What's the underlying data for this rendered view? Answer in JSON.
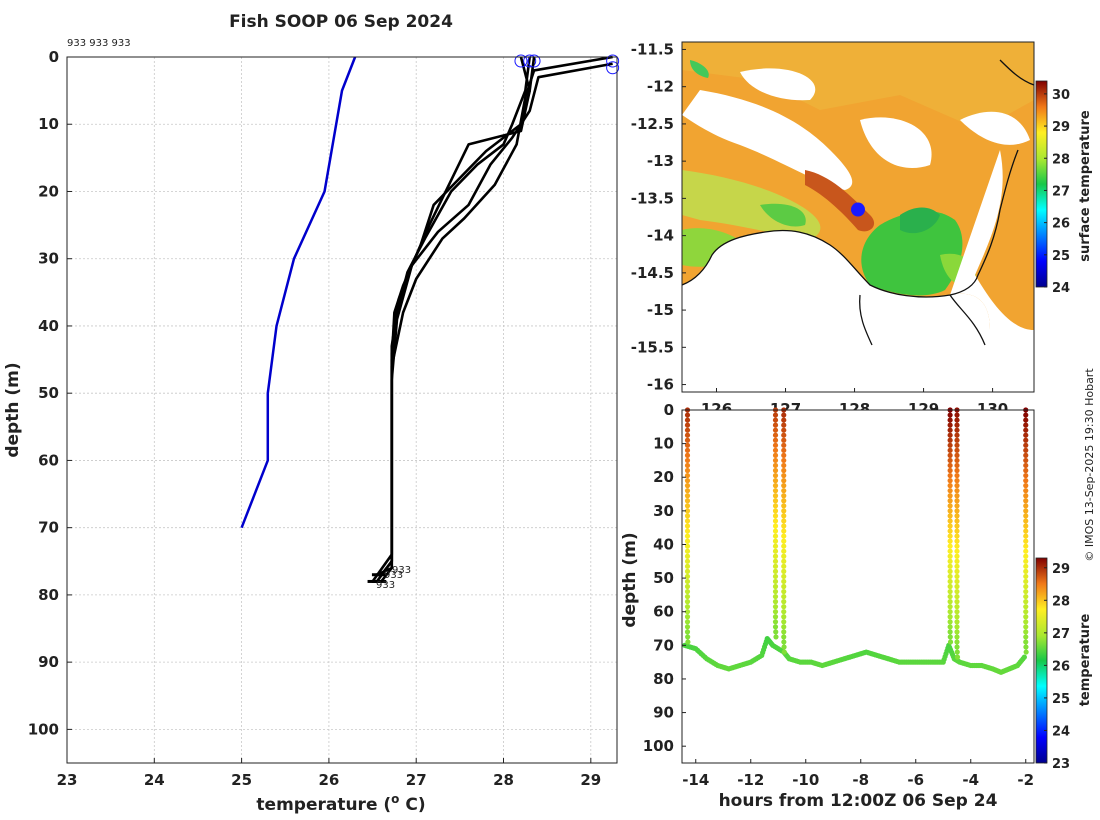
{
  "title": "Fish SOOP 06 Sep 2024",
  "credit": "© IMOS 13-Sep-2025 19:30 Hobart",
  "chart_data": [
    {
      "type": "line",
      "name": "profile",
      "xlabel": "temperature (",
      "xlabel_sup": "o",
      "xlabel_end": " C)",
      "ylabel": "depth (m)",
      "xlim": [
        23,
        29.3
      ],
      "ylim": [
        0,
        105
      ],
      "y_reversed": true,
      "grid": true,
      "xticks": [
        "23",
        "24",
        "25",
        "26",
        "27",
        "28",
        "29"
      ],
      "yticks": [
        "0",
        "10",
        "20",
        "30",
        "40",
        "50",
        "60",
        "70",
        "80",
        "90",
        "100"
      ],
      "top_labels": "933 933 933",
      "bottom_labels": [
        "933",
        "933",
        "933"
      ],
      "reference": {
        "name": "climatology",
        "color": "#0000cc",
        "points": [
          [
            26.3,
            0
          ],
          [
            26.15,
            5
          ],
          [
            25.95,
            20
          ],
          [
            25.6,
            30
          ],
          [
            25.4,
            40
          ],
          [
            25.3,
            50
          ],
          [
            25.3,
            60
          ],
          [
            25.0,
            70
          ]
        ]
      },
      "series": [
        {
          "name": "profile-1",
          "color": "#000000",
          "points": [
            [
              28.2,
              0
            ],
            [
              28.3,
              5
            ],
            [
              28.2,
              10
            ],
            [
              27.8,
              14
            ],
            [
              27.5,
              18
            ],
            [
              27.2,
              22
            ],
            [
              27.05,
              28
            ],
            [
              26.85,
              34
            ],
            [
              26.75,
              38
            ],
            [
              26.72,
              45
            ],
            [
              26.72,
              60
            ],
            [
              26.72,
              75
            ],
            [
              26.6,
              77
            ]
          ]
        },
        {
          "name": "profile-2",
          "color": "#000000",
          "points": [
            [
              28.3,
              0
            ],
            [
              28.25,
              5
            ],
            [
              28.1,
              10
            ],
            [
              28.0,
              13
            ],
            [
              27.7,
              16
            ],
            [
              27.4,
              20
            ],
            [
              27.1,
              27
            ],
            [
              26.9,
              32
            ],
            [
              26.8,
              37
            ],
            [
              26.72,
              44
            ],
            [
              26.72,
              60
            ],
            [
              26.72,
              75
            ],
            [
              26.55,
              78
            ]
          ]
        },
        {
          "name": "profile-3",
          "color": "#000000",
          "points": [
            [
              28.35,
              0
            ],
            [
              28.3,
              5
            ],
            [
              28.2,
              11
            ],
            [
              27.6,
              13
            ],
            [
              27.45,
              17
            ],
            [
              27.3,
              21
            ],
            [
              27.15,
              25
            ],
            [
              26.95,
              31
            ],
            [
              26.8,
              36
            ],
            [
              26.72,
              43
            ],
            [
              26.72,
              60
            ],
            [
              26.72,
              74
            ],
            [
              26.5,
              78
            ]
          ]
        },
        {
          "name": "profile-4",
          "color": "#000000",
          "points": [
            [
              29.25,
              0
            ],
            [
              28.35,
              2
            ],
            [
              28.25,
              6
            ],
            [
              28.15,
              13
            ],
            [
              27.9,
              19
            ],
            [
              27.55,
              24
            ],
            [
              27.3,
              27
            ],
            [
              27.0,
              33
            ],
            [
              26.85,
              38
            ],
            [
              26.72,
              46
            ],
            [
              26.72,
              60
            ],
            [
              26.72,
              76
            ],
            [
              26.6,
              78
            ]
          ]
        },
        {
          "name": "profile-5",
          "color": "#000000",
          "points": [
            [
              29.25,
              1
            ],
            [
              28.4,
              3
            ],
            [
              28.3,
              8
            ],
            [
              28.1,
              12
            ],
            [
              27.85,
              16
            ],
            [
              27.6,
              22
            ],
            [
              27.25,
              26
            ],
            [
              26.95,
              31
            ],
            [
              26.78,
              39
            ],
            [
              26.72,
              48
            ],
            [
              26.72,
              60
            ],
            [
              26.72,
              76
            ],
            [
              26.55,
              77
            ]
          ]
        }
      ]
    },
    {
      "type": "heatmap",
      "name": "sst-map",
      "xlim": [
        125.5,
        130.6
      ],
      "ylim": [
        -16.1,
        -11.4
      ],
      "xticks": [
        "126",
        "127",
        "128",
        "129",
        "130"
      ],
      "yticks": [
        "-11.5",
        "-12",
        "-12.5",
        "-13",
        "-13.5",
        "-14",
        "-14.5",
        "-15",
        "-15.5",
        "-16"
      ],
      "colorbar_label": "surface temperature",
      "colorbar_range": [
        24,
        30.4
      ],
      "colorbar_ticks": [
        "24",
        "25",
        "26",
        "27",
        "28",
        "29",
        "30"
      ],
      "vessel_position": {
        "lon": 128.05,
        "lat": -13.65
      }
    },
    {
      "type": "scatter",
      "name": "depth-time-section",
      "xlabel": "hours from 12:00Z 06 Sep 24",
      "ylabel": "depth (m)",
      "xlim": [
        -14.5,
        -1.7
      ],
      "ylim": [
        0,
        105
      ],
      "y_reversed": true,
      "xticks": [
        "-14",
        "-12",
        "-10",
        "-8",
        "-6",
        "-4",
        "-2"
      ],
      "yticks": [
        "0",
        "10",
        "20",
        "30",
        "40",
        "50",
        "60",
        "70",
        "80",
        "90",
        "100"
      ],
      "colorbar_label": "temperature",
      "colorbar_range": [
        23,
        29.3
      ],
      "colorbar_ticks": [
        "23",
        "24",
        "25",
        "26",
        "27",
        "28",
        "29"
      ],
      "seafloor": [
        [
          -14.4,
          70
        ],
        [
          -14.0,
          71
        ],
        [
          -13.6,
          74
        ],
        [
          -13.2,
          76
        ],
        [
          -12.8,
          77
        ],
        [
          -12.4,
          76
        ],
        [
          -12.0,
          75
        ],
        [
          -11.6,
          73
        ],
        [
          -11.4,
          68
        ],
        [
          -11.2,
          70
        ],
        [
          -10.8,
          72
        ],
        [
          -10.6,
          74
        ],
        [
          -10.2,
          75
        ],
        [
          -9.8,
          75
        ],
        [
          -9.4,
          76
        ],
        [
          -9.0,
          75
        ],
        [
          -8.6,
          74
        ],
        [
          -8.2,
          73
        ],
        [
          -7.8,
          72
        ],
        [
          -7.4,
          73
        ],
        [
          -7.0,
          74
        ],
        [
          -6.6,
          75
        ],
        [
          -6.2,
          75
        ],
        [
          -5.8,
          75
        ],
        [
          -5.4,
          75
        ],
        [
          -5.0,
          75
        ],
        [
          -4.8,
          70
        ],
        [
          -4.6,
          74
        ],
        [
          -4.4,
          75
        ],
        [
          -4.0,
          76
        ],
        [
          -3.6,
          76
        ],
        [
          -3.2,
          77
        ],
        [
          -2.9,
          78
        ],
        [
          -2.6,
          77
        ],
        [
          -2.3,
          76
        ],
        [
          -2.0,
          73
        ]
      ],
      "casts": [
        {
          "hour": -14.3,
          "surface_temp": 29.0,
          "bottom": 70
        },
        {
          "hour": -11.1,
          "surface_temp": 28.9,
          "bottom": 68
        },
        {
          "hour": -10.8,
          "surface_temp": 29.0,
          "bottom": 72
        },
        {
          "hour": -4.75,
          "surface_temp": 29.3,
          "bottom": 70
        },
        {
          "hour": -4.5,
          "surface_temp": 29.2,
          "bottom": 74
        },
        {
          "hour": -2.0,
          "surface_temp": 29.3,
          "bottom": 73
        }
      ],
      "deep_temp": 26.7
    }
  ]
}
